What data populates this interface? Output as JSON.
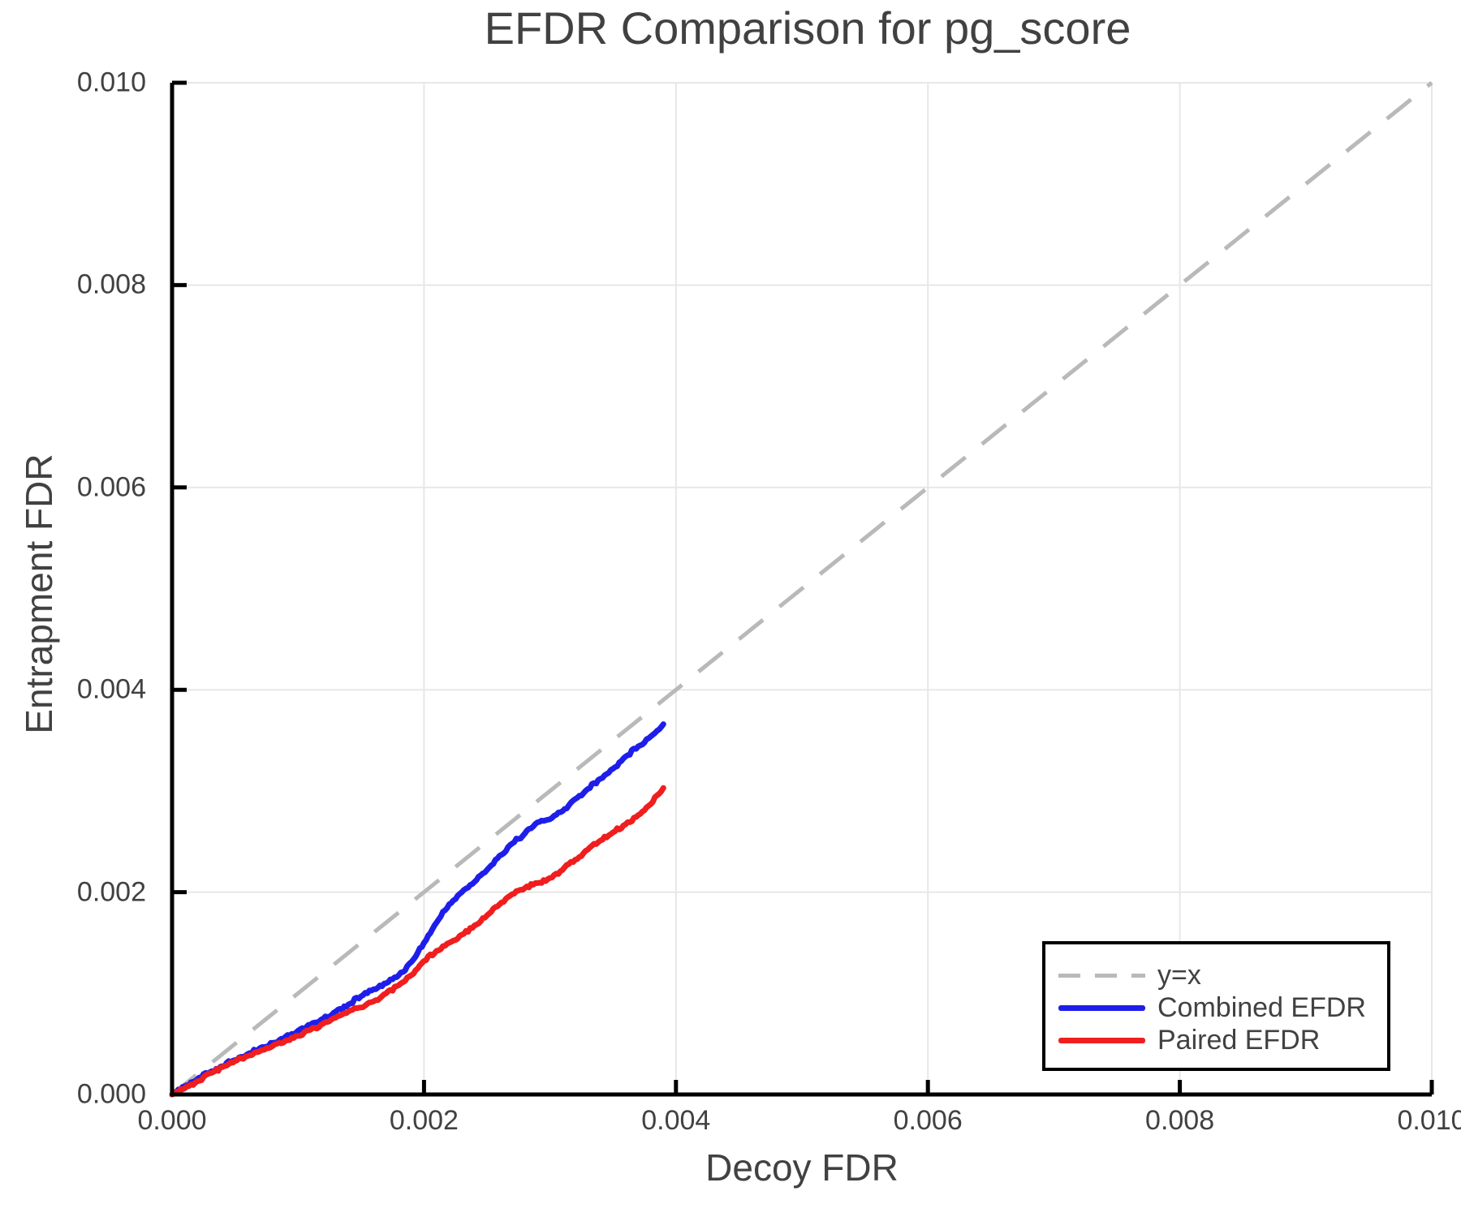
{
  "title": "EFDR Comparison for pg_score",
  "colors": {
    "background": "#ffffff",
    "text": "#414141",
    "spine": "#000000",
    "grid": "#e7e7e7",
    "diagonal": "#b9b9b9",
    "combined": "#1e1eeb",
    "paired": "#f01e1e",
    "legend_border": "#000000"
  },
  "chart_data": {
    "type": "line",
    "title": "EFDR Comparison for pg_score",
    "xlabel": "Decoy FDR",
    "ylabel": "Entrapment FDR",
    "xlim": [
      0.0,
      0.01
    ],
    "ylim": [
      0.0,
      0.01
    ],
    "grid": true,
    "xticks": {
      "values": [
        0.0,
        0.002,
        0.004,
        0.006,
        0.008,
        0.01
      ],
      "labels": [
        "0.000",
        "0.002",
        "0.004",
        "0.006",
        "0.008",
        "0.010"
      ]
    },
    "yticks": {
      "values": [
        0.0,
        0.002,
        0.004,
        0.006,
        0.008,
        0.01
      ],
      "labels": [
        "0.000",
        "0.002",
        "0.004",
        "0.006",
        "0.008",
        "0.010"
      ]
    },
    "legend": {
      "position": "lower right",
      "entries": [
        "y=x",
        "Combined EFDR",
        "Paired EFDR"
      ]
    },
    "series": [
      {
        "name": "y=x",
        "style": "dashed",
        "color": "#b9b9b9",
        "x": [
          0.0,
          0.01
        ],
        "y": [
          0.0,
          0.01
        ]
      },
      {
        "name": "Combined EFDR",
        "style": "solid",
        "color": "#1e1eeb",
        "x": [
          0.0,
          0.0001,
          0.0002,
          0.0003,
          0.0004,
          0.0005,
          0.0006,
          0.0007,
          0.0008,
          0.0009,
          0.001,
          0.0011,
          0.0012,
          0.0013,
          0.0014,
          0.0015,
          0.0016,
          0.0017,
          0.0018,
          0.0019,
          0.002,
          0.0021,
          0.0022,
          0.0023,
          0.0024,
          0.0025,
          0.0026,
          0.0027,
          0.0028,
          0.0029,
          0.003,
          0.0031,
          0.0032,
          0.0033,
          0.0034,
          0.0035,
          0.0036,
          0.0037,
          0.0038,
          0.0039
        ],
        "y": [
          0.0,
          8e-05,
          0.00015,
          0.00022,
          0.00028,
          0.00034,
          0.0004,
          0.00046,
          0.00051,
          0.00057,
          0.00063,
          0.00069,
          0.00075,
          0.00082,
          0.00089,
          0.00097,
          0.00104,
          0.0011,
          0.00118,
          0.00131,
          0.0015,
          0.0017,
          0.00188,
          0.002,
          0.0021,
          0.00222,
          0.00236,
          0.00248,
          0.00258,
          0.00269,
          0.00272,
          0.0028,
          0.00292,
          0.00302,
          0.00312,
          0.00322,
          0.00334,
          0.00344,
          0.00354,
          0.00366
        ]
      },
      {
        "name": "Paired EFDR",
        "style": "solid",
        "color": "#f01e1e",
        "x": [
          0.0,
          0.0001,
          0.0002,
          0.0003,
          0.0004,
          0.0005,
          0.0006,
          0.0007,
          0.0008,
          0.0009,
          0.001,
          0.0011,
          0.0012,
          0.0013,
          0.0014,
          0.0015,
          0.0016,
          0.0017,
          0.0018,
          0.0019,
          0.002,
          0.0021,
          0.0022,
          0.0023,
          0.0024,
          0.0025,
          0.0026,
          0.0027,
          0.0028,
          0.0029,
          0.003,
          0.0031,
          0.0032,
          0.0033,
          0.0034,
          0.0035,
          0.0036,
          0.0037,
          0.0038,
          0.0039
        ],
        "y": [
          0.0,
          6e-05,
          0.00013,
          0.00021,
          0.00027,
          0.00033,
          0.00038,
          0.00043,
          0.00048,
          0.00053,
          0.00058,
          0.00064,
          0.0007,
          0.00076,
          0.00082,
          0.00086,
          0.00092,
          0.001,
          0.00108,
          0.00118,
          0.00132,
          0.00142,
          0.0015,
          0.00158,
          0.00167,
          0.00177,
          0.00188,
          0.00198,
          0.00204,
          0.00209,
          0.00214,
          0.00222,
          0.00232,
          0.00242,
          0.00251,
          0.00259,
          0.00267,
          0.00276,
          0.00287,
          0.00303
        ]
      }
    ]
  }
}
